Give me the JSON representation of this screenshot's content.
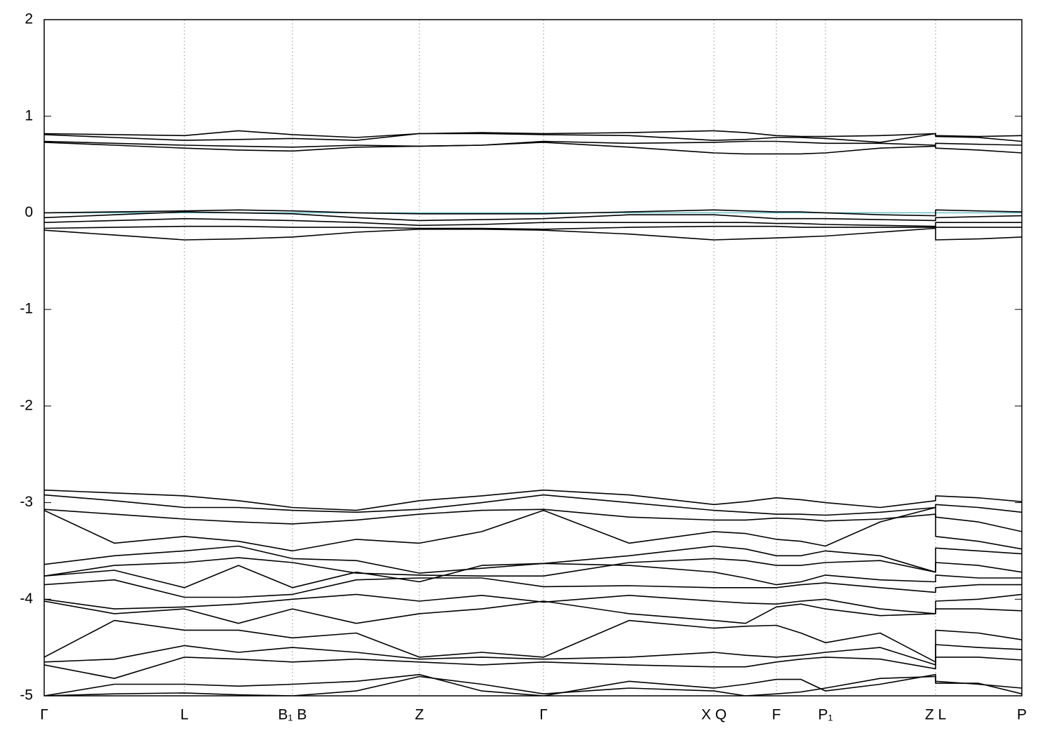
{
  "chart_data": {
    "type": "line",
    "x": [
      0,
      100,
      200,
      277,
      354,
      445,
      535,
      624,
      712,
      834,
      955,
      1000,
      1044,
      1079,
      1114,
      1192,
      1271,
      1271,
      1332,
      1394
    ],
    "xlim": [
      0,
      1394
    ],
    "xticks": [
      {
        "value": 0,
        "label": "Γ"
      },
      {
        "value": 200,
        "label": "L"
      },
      {
        "value": 354,
        "label": "B₁ B"
      },
      {
        "value": 535,
        "label": "Z"
      },
      {
        "value": 712,
        "label": "Γ"
      },
      {
        "value": 955,
        "label": "X Q"
      },
      {
        "value": 1044,
        "label": "F"
      },
      {
        "value": 1114,
        "label": "P₁"
      },
      {
        "value": 1271,
        "label": "Z L"
      },
      {
        "value": 1394,
        "label": "P"
      }
    ],
    "ylim": [
      -5,
      2
    ],
    "yticks": [
      2,
      1,
      0,
      -1,
      -2,
      -3,
      -4,
      -5
    ],
    "grid": true,
    "hline": {
      "value": 0,
      "color": "#6bbfcc"
    },
    "series": [
      {
        "color": "#000000",
        "values": [
          0.82,
          0.81,
          0.8,
          0.85,
          0.81,
          0.78,
          0.82,
          0.83,
          0.82,
          0.83,
          0.85,
          0.83,
          0.8,
          0.79,
          0.79,
          0.8,
          0.82,
          0.8,
          0.79,
          0.8
        ]
      },
      {
        "color": "#000000",
        "values": [
          0.81,
          0.78,
          0.75,
          0.76,
          0.77,
          0.75,
          0.82,
          0.82,
          0.81,
          0.8,
          0.75,
          0.76,
          0.78,
          0.78,
          0.77,
          0.73,
          0.82,
          0.79,
          0.78,
          0.74
        ]
      },
      {
        "color": "#000000",
        "values": [
          0.74,
          0.72,
          0.7,
          0.69,
          0.68,
          0.7,
          0.69,
          0.7,
          0.74,
          0.72,
          0.73,
          0.74,
          0.74,
          0.73,
          0.72,
          0.72,
          0.7,
          0.72,
          0.71,
          0.7
        ]
      },
      {
        "color": "#000000",
        "values": [
          0.73,
          0.7,
          0.67,
          0.65,
          0.64,
          0.68,
          0.69,
          0.7,
          0.73,
          0.68,
          0.62,
          0.61,
          0.61,
          0.61,
          0.62,
          0.67,
          0.69,
          0.67,
          0.65,
          0.62
        ]
      },
      {
        "color": "#000000",
        "values": [
          0.0,
          0.01,
          0.02,
          0.03,
          0.02,
          0.0,
          -0.01,
          -0.01,
          -0.01,
          0.01,
          0.03,
          0.02,
          0.01,
          0.01,
          0.0,
          -0.02,
          -0.03,
          0.03,
          0.02,
          0.01
        ]
      },
      {
        "color": "#000000",
        "values": [
          -0.05,
          -0.02,
          0.01,
          0.0,
          -0.01,
          -0.05,
          -0.08,
          -0.07,
          -0.06,
          -0.02,
          -0.02,
          -0.04,
          -0.06,
          -0.06,
          -0.06,
          -0.07,
          -0.08,
          -0.05,
          -0.04,
          -0.03
        ]
      },
      {
        "color": "#000000",
        "values": [
          -0.1,
          -0.08,
          -0.06,
          -0.07,
          -0.08,
          -0.1,
          -0.13,
          -0.12,
          -0.1,
          -0.1,
          -0.1,
          -0.1,
          -0.11,
          -0.11,
          -0.12,
          -0.13,
          -0.14,
          -0.1,
          -0.1,
          -0.1
        ]
      },
      {
        "color": "#000000",
        "values": [
          -0.16,
          -0.15,
          -0.14,
          -0.14,
          -0.15,
          -0.15,
          -0.16,
          -0.16,
          -0.17,
          -0.15,
          -0.14,
          -0.14,
          -0.14,
          -0.15,
          -0.15,
          -0.15,
          -0.15,
          -0.15,
          -0.15,
          -0.15
        ]
      },
      {
        "color": "#000000",
        "values": [
          -0.18,
          -0.23,
          -0.28,
          -0.27,
          -0.25,
          -0.2,
          -0.17,
          -0.17,
          -0.18,
          -0.22,
          -0.28,
          -0.27,
          -0.26,
          -0.25,
          -0.24,
          -0.2,
          -0.16,
          -0.28,
          -0.27,
          -0.25
        ]
      },
      {
        "color": "#000000",
        "values": [
          -2.87,
          -2.9,
          -2.93,
          -2.98,
          -3.05,
          -3.08,
          -2.98,
          -2.93,
          -2.87,
          -2.92,
          -3.02,
          -2.99,
          -2.95,
          -2.97,
          -3.0,
          -3.05,
          -2.98,
          -2.93,
          -2.95,
          -2.99
        ]
      },
      {
        "color": "#000000",
        "values": [
          -2.92,
          -2.98,
          -3.05,
          -3.05,
          -3.08,
          -3.1,
          -3.07,
          -3.0,
          -2.92,
          -3.0,
          -3.08,
          -3.1,
          -3.12,
          -3.12,
          -3.13,
          -3.1,
          -3.05,
          -3.02,
          -3.05,
          -3.1
        ]
      },
      {
        "color": "#000000",
        "values": [
          -3.07,
          -3.12,
          -3.17,
          -3.2,
          -3.22,
          -3.18,
          -3.12,
          -3.08,
          -3.07,
          -3.15,
          -3.18,
          -3.18,
          -3.16,
          -3.17,
          -3.19,
          -3.17,
          -3.12,
          -3.15,
          -3.2,
          -3.3
        ]
      },
      {
        "color": "#000000",
        "values": [
          -3.08,
          -3.42,
          -3.35,
          -3.4,
          -3.5,
          -3.38,
          -3.42,
          -3.3,
          -3.08,
          -3.42,
          -3.3,
          -3.32,
          -3.38,
          -3.4,
          -3.45,
          -3.2,
          -3.05,
          -3.35,
          -3.4,
          -3.48
        ]
      },
      {
        "color": "#000000",
        "values": [
          -3.64,
          -3.55,
          -3.5,
          -3.45,
          -3.58,
          -3.6,
          -3.73,
          -3.68,
          -3.63,
          -3.55,
          -3.45,
          -3.48,
          -3.55,
          -3.55,
          -3.5,
          -3.55,
          -3.72,
          -3.47,
          -3.5,
          -3.53
        ]
      },
      {
        "color": "#000000",
        "values": [
          -3.76,
          -3.65,
          -3.62,
          -3.57,
          -3.62,
          -3.73,
          -3.75,
          -3.76,
          -3.76,
          -3.62,
          -3.58,
          -3.6,
          -3.65,
          -3.65,
          -3.62,
          -3.6,
          -3.72,
          -3.62,
          -3.65,
          -3.72
        ]
      },
      {
        "color": "#000000",
        "values": [
          -3.76,
          -3.7,
          -3.88,
          -3.65,
          -3.88,
          -3.72,
          -3.82,
          -3.65,
          -3.63,
          -3.65,
          -3.72,
          -3.78,
          -3.85,
          -3.82,
          -3.75,
          -3.8,
          -3.82,
          -3.75,
          -3.78,
          -3.78
        ]
      },
      {
        "color": "#000000",
        "values": [
          -3.85,
          -3.8,
          -3.98,
          -3.98,
          -3.95,
          -3.8,
          -3.78,
          -3.78,
          -3.87,
          -3.86,
          -3.88,
          -3.88,
          -3.88,
          -3.85,
          -3.83,
          -3.88,
          -3.93,
          -3.88,
          -3.85,
          -3.85
        ]
      },
      {
        "color": "#000000",
        "values": [
          -4.0,
          -4.1,
          -4.08,
          -4.05,
          -4.0,
          -3.95,
          -4.02,
          -3.96,
          -4.03,
          -3.96,
          -4.02,
          -4.04,
          -4.05,
          -4.02,
          -4.0,
          -4.1,
          -4.15,
          -4.02,
          -4.0,
          -3.95
        ]
      },
      {
        "color": "#000000",
        "values": [
          -4.02,
          -4.15,
          -4.1,
          -4.25,
          -4.1,
          -4.25,
          -4.15,
          -4.1,
          -4.02,
          -4.15,
          -4.22,
          -4.25,
          -4.08,
          -4.05,
          -4.1,
          -4.17,
          -4.15,
          -4.1,
          -4.1,
          -4.12
        ]
      },
      {
        "color": "#000000",
        "values": [
          -4.6,
          -4.22,
          -4.32,
          -4.32,
          -4.4,
          -4.35,
          -4.6,
          -4.55,
          -4.6,
          -4.22,
          -4.3,
          -4.28,
          -4.27,
          -4.35,
          -4.45,
          -4.35,
          -4.65,
          -4.32,
          -4.35,
          -4.42
        ]
      },
      {
        "color": "#000000",
        "values": [
          -4.65,
          -4.62,
          -4.48,
          -4.55,
          -4.5,
          -4.55,
          -4.62,
          -4.6,
          -4.62,
          -4.6,
          -4.55,
          -4.58,
          -4.6,
          -4.58,
          -4.55,
          -4.5,
          -4.68,
          -4.47,
          -4.5,
          -4.52
        ]
      },
      {
        "color": "#000000",
        "values": [
          -4.68,
          -4.82,
          -4.6,
          -4.62,
          -4.65,
          -4.62,
          -4.65,
          -4.68,
          -4.65,
          -4.68,
          -4.7,
          -4.7,
          -4.65,
          -4.62,
          -4.6,
          -4.62,
          -4.72,
          -4.6,
          -4.6,
          -4.63
        ]
      },
      {
        "color": "#000000",
        "values": [
          -5.0,
          -4.88,
          -4.88,
          -4.9,
          -4.88,
          -4.85,
          -4.78,
          -4.95,
          -5.0,
          -4.85,
          -4.92,
          -4.88,
          -4.83,
          -4.83,
          -4.95,
          -4.88,
          -4.78,
          -4.85,
          -4.88,
          -4.92
        ]
      },
      {
        "color": "#000000",
        "values": [
          -5.0,
          -4.98,
          -4.97,
          -4.99,
          -5.0,
          -4.95,
          -4.8,
          -4.88,
          -4.98,
          -4.92,
          -4.95,
          -5.0,
          -4.98,
          -4.96,
          -4.92,
          -4.82,
          -4.8,
          -4.87,
          -4.87,
          -4.98
        ]
      }
    ]
  }
}
